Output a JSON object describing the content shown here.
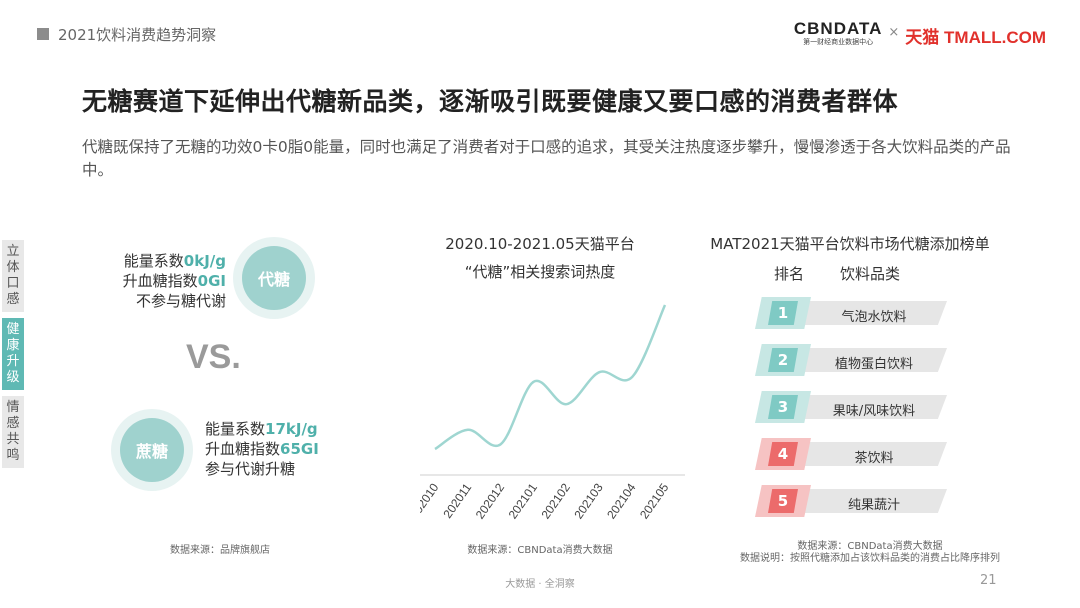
{
  "header": {
    "section_title": "2021饮料消费趋势洞察",
    "logo_cbn": "CBNDATA",
    "logo_cbn_sub": "第一财经商业数据中心",
    "logo_x": "×",
    "logo_tmall": "天猫 TMALL.COM"
  },
  "headline": "无糖赛道下延伸出代糖新品类，逐渐吸引既要健康又要口感的消费者群体",
  "subtext": "代糖既保持了无糖的功效0卡0脂0能量，同时也满足了消费者对于口感的追求，其受关注热度逐步攀升，慢慢渗透于各大饮料品类的产品中。",
  "side_tabs": [
    "立体口感",
    "健康升级",
    "情感共鸣"
  ],
  "comparison": {
    "sweetener": {
      "name": "代糖",
      "line1_prefix": "能量系数",
      "line1_value": "0kJ/g",
      "line2_prefix": "升血糖指数",
      "line2_value": "0GI",
      "line3": "不参与糖代谢"
    },
    "vs": "VS.",
    "sucrose": {
      "name": "蔗糖",
      "line1_prefix": "能量系数",
      "line1_value": "17kJ/g",
      "line2_prefix": "升血糖指数",
      "line2_value": "65GI",
      "line3": "参与代谢升糖"
    },
    "source": "数据来源：品牌旗舰店"
  },
  "trend_chart": {
    "title_line1": "2020.10-2021.05天猫平台",
    "title_line2": "“代糖”相关搜索词热度",
    "source": "数据来源：CBNData消费大数据"
  },
  "chart_data": {
    "type": "line",
    "title": "2020.10-2021.05天猫平台 “代糖”相关搜索词热度",
    "x": [
      "202010",
      "202011",
      "202012",
      "202101",
      "202102",
      "202103",
      "202104",
      "202105"
    ],
    "series": [
      {
        "values": [
          10,
          22,
          13,
          52,
          38,
          58,
          55,
          100
        ]
      }
    ],
    "ylim": [
      0,
      100
    ],
    "line_color": "#9fd6d1",
    "grid": false
  },
  "ranking": {
    "title": "MAT2021天猫平台饮料市场代糖添加榜单",
    "col_rank": "排名",
    "col_category": "饮料品类",
    "items": [
      {
        "rank": "1",
        "label": "气泡水饮料",
        "color": "teal"
      },
      {
        "rank": "2",
        "label": "植物蛋白饮料",
        "color": "teal"
      },
      {
        "rank": "3",
        "label": "果味/风味饮料",
        "color": "teal"
      },
      {
        "rank": "4",
        "label": "茶饮料",
        "color": "red"
      },
      {
        "rank": "5",
        "label": "纯果蔬汁",
        "color": "red"
      }
    ],
    "source_line1": "数据来源：CBNData消费大数据",
    "source_line2": "数据说明：按照代糖添加占该饮料品类的消费占比降序排列"
  },
  "footer": {
    "text": "大数据 · 全洞察",
    "page": "21"
  }
}
